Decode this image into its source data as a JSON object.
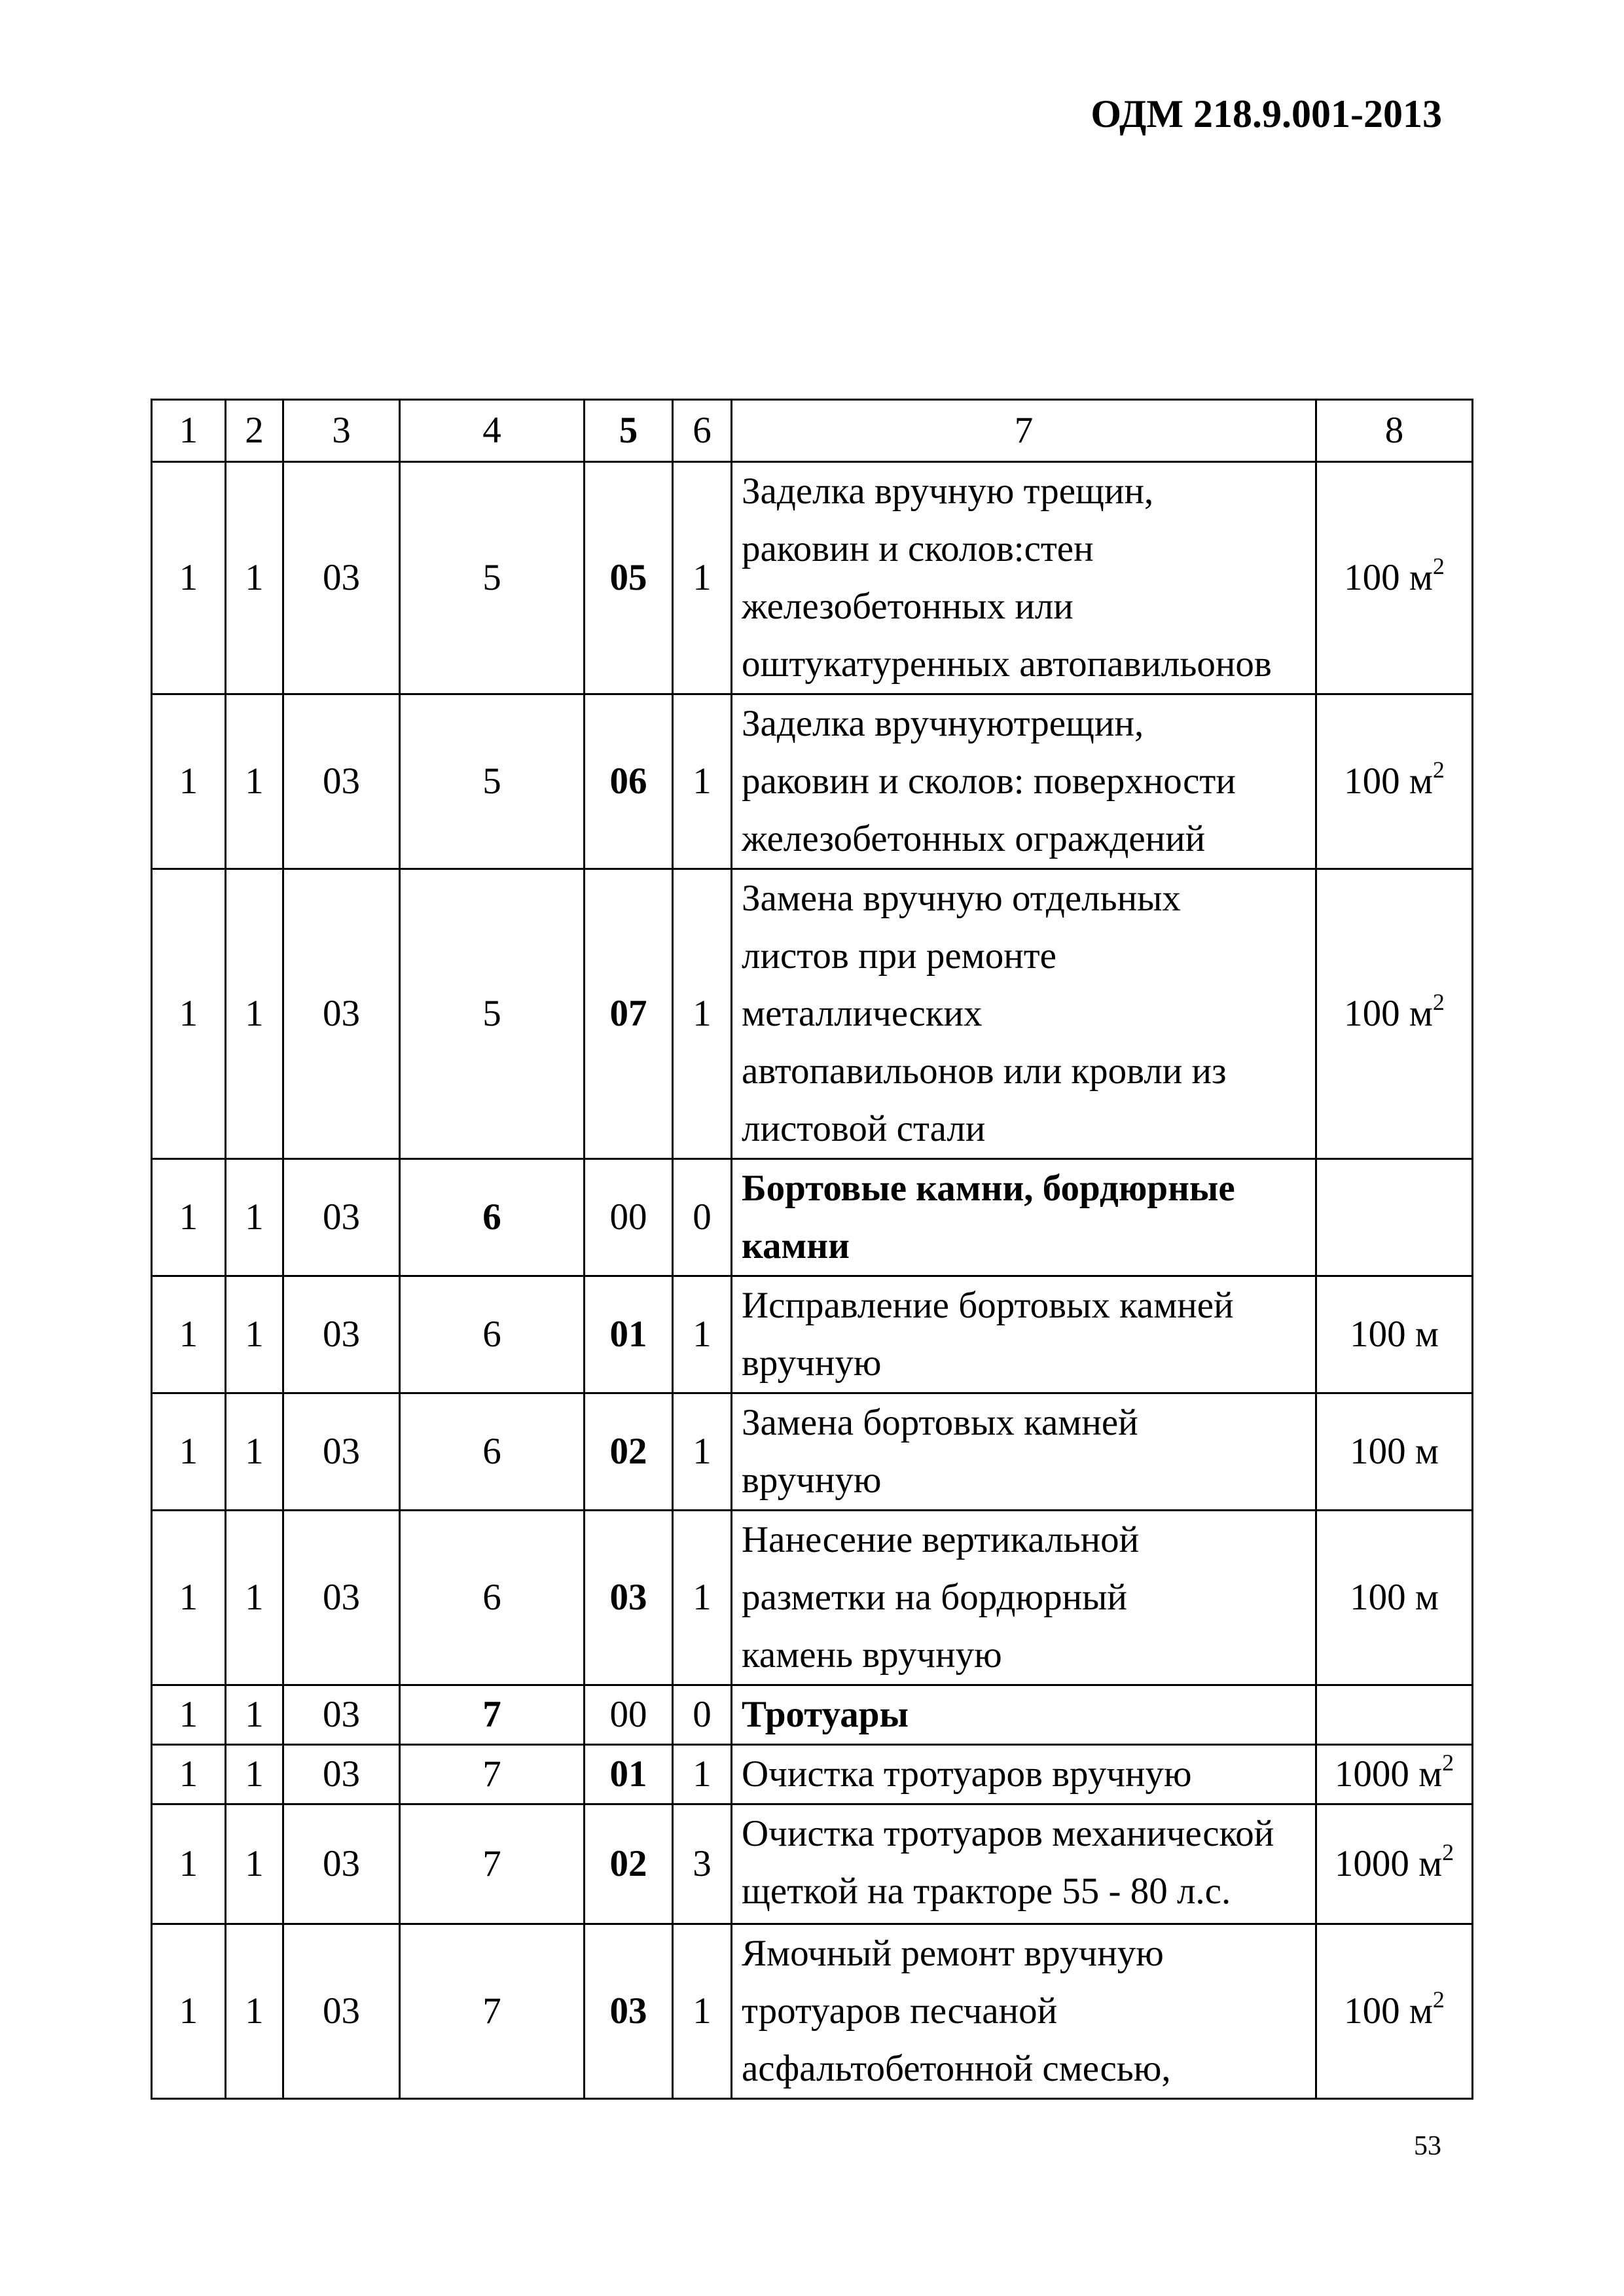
{
  "header": {
    "doc_code": "ОДМ 218.9.001-2013"
  },
  "footer": {
    "page_number": "53"
  },
  "table": {
    "header_row": [
      "1",
      "2",
      "3",
      "4",
      "5",
      "6",
      "7",
      "8"
    ],
    "rows": [
      {
        "codes": [
          "1",
          "1",
          "03",
          "5",
          "05",
          "1"
        ],
        "bold_codes": [
          4
        ],
        "desc": [
          "Заделка вручную трещин,",
          "раковин и сколов:стен",
          "железобетонных или",
          "оштукатуренных автопавильонов"
        ],
        "desc_bold": false,
        "unit": "100 м",
        "unit_sup": "2"
      },
      {
        "codes": [
          "1",
          "1",
          "03",
          "5",
          "06",
          "1"
        ],
        "bold_codes": [
          4
        ],
        "desc": [
          "Заделка  вручнуютрещин,",
          "раковин и сколов: поверхности",
          "железобетонных ограждений"
        ],
        "desc_bold": false,
        "unit": "100 м",
        "unit_sup": "2"
      },
      {
        "codes": [
          "1",
          "1",
          "03",
          "5",
          "07",
          "1"
        ],
        "bold_codes": [
          4
        ],
        "desc": [
          "Замена   вручную  отдельных",
          "листов   при   ремонте",
          "металлических",
          "автопавильонов или кровли из",
          "листовой стали"
        ],
        "desc_bold": false,
        "unit": "100 м",
        "unit_sup": "2"
      },
      {
        "codes": [
          "1",
          "1",
          "03",
          "6",
          "00",
          "0"
        ],
        "bold_codes": [
          3
        ],
        "desc": [
          "Бортовые камни, бордюрные",
          "камни"
        ],
        "desc_bold": true,
        "unit": "",
        "unit_sup": ""
      },
      {
        "codes": [
          "1",
          "1",
          "03",
          "6",
          "01",
          "1"
        ],
        "bold_codes": [
          4
        ],
        "desc": [
          "Исправление бортовых камней",
          "вручную"
        ],
        "desc_bold": false,
        "unit": "100 м",
        "unit_sup": ""
      },
      {
        "codes": [
          "1",
          "1",
          "03",
          "6",
          "02",
          "1"
        ],
        "bold_codes": [
          4
        ],
        "desc": [
          "Замена бортовых камней",
          "вручную"
        ],
        "desc_bold": false,
        "unit": "100 м",
        "unit_sup": ""
      },
      {
        "codes": [
          "1",
          "1",
          "03",
          "6",
          "03",
          "1"
        ],
        "bold_codes": [
          4
        ],
        "desc": [
          "Нанесение вертикальной",
          "разметки на бордюрный",
          "камень вручную"
        ],
        "desc_bold": false,
        "unit": "100 м",
        "unit_sup": ""
      },
      {
        "codes": [
          "1",
          "1",
          "03",
          "7",
          "00",
          "0"
        ],
        "bold_codes": [
          3
        ],
        "desc": [
          "Тротуары"
        ],
        "desc_bold": true,
        "unit": "",
        "unit_sup": ""
      },
      {
        "codes": [
          "1",
          "1",
          "03",
          "7",
          "01",
          "1"
        ],
        "bold_codes": [
          4
        ],
        "desc": [
          "Очистка тротуаров вручную"
        ],
        "desc_bold": false,
        "unit": "1000 м",
        "unit_sup": "2"
      },
      {
        "codes": [
          "1",
          "1",
          "03",
          "7",
          "02",
          "3"
        ],
        "bold_codes": [
          4
        ],
        "desc": [
          "Очистка тротуаров механической",
          "щеткой на тракторе 55 - 80 л.с."
        ],
        "desc_bold": false,
        "unit": "1000 м",
        "unit_sup": "2"
      },
      {
        "codes": [
          "1",
          "1",
          "03",
          "7",
          "03",
          "1"
        ],
        "bold_codes": [
          4
        ],
        "desc": [
          "Ямочный  ремонт   вручную",
          "тротуаров  песчаной",
          "асфальтобетонной смесью,"
        ],
        "desc_bold": false,
        "unit": "100 м",
        "unit_sup": "2"
      }
    ]
  }
}
